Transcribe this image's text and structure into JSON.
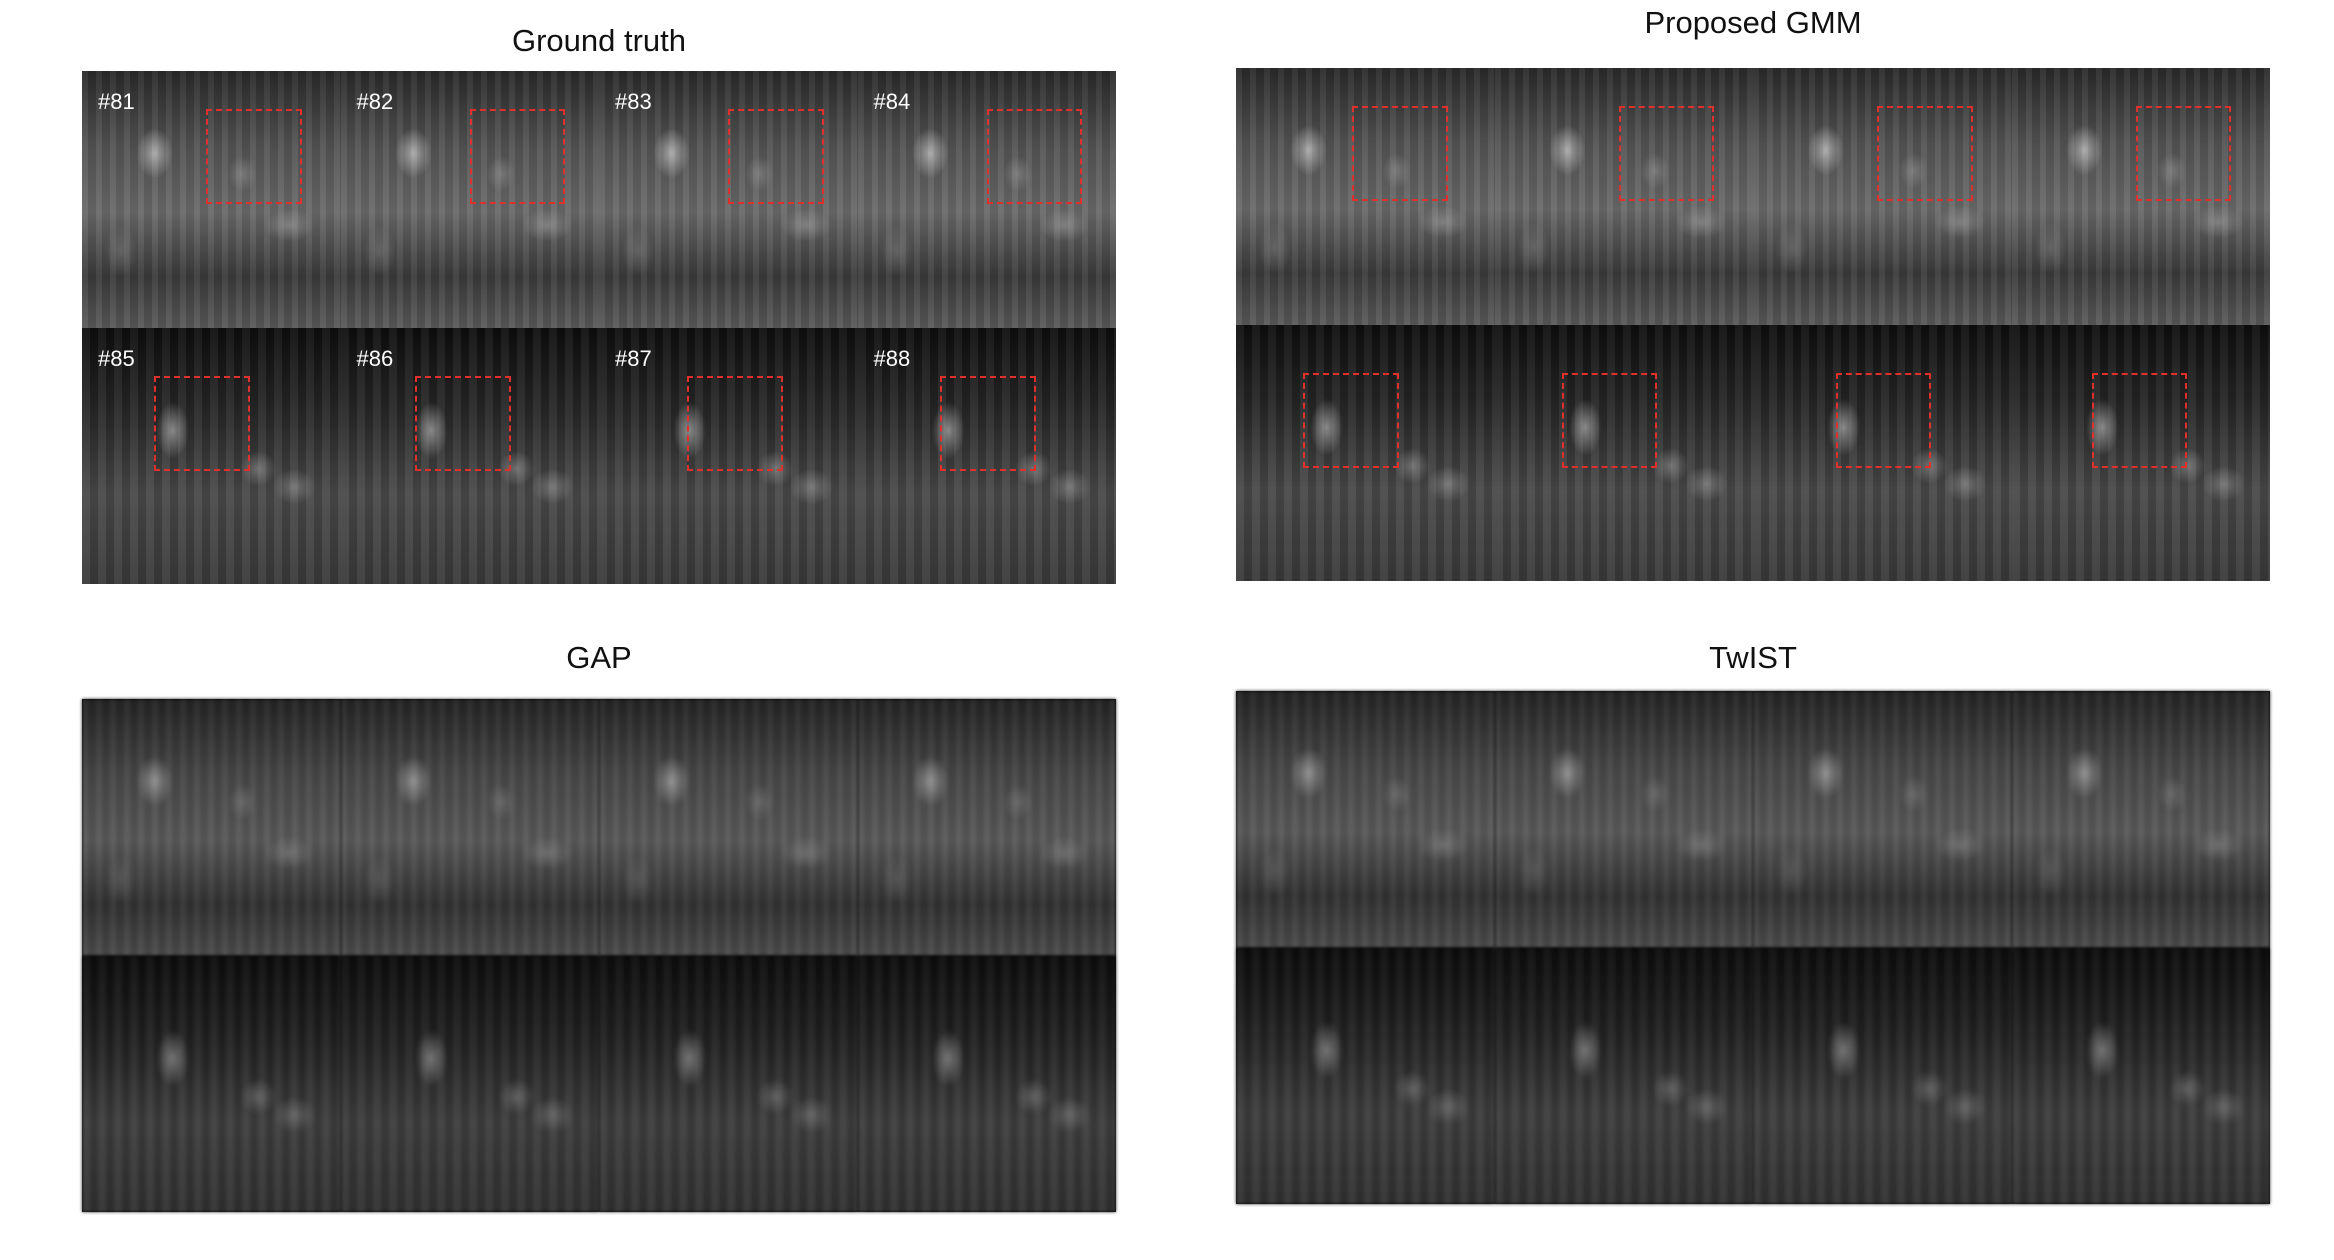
{
  "panels": {
    "ground_truth": {
      "title": "Ground truth",
      "frame_labels": [
        "#81",
        "#82",
        "#83",
        "#84",
        "#85",
        "#86",
        "#87",
        "#88"
      ]
    },
    "gmm": {
      "title": "Proposed GMM"
    },
    "gap": {
      "title": "GAP"
    },
    "twist": {
      "title": "TwIST"
    }
  },
  "colors": {
    "roi_box": "#e0302c",
    "background": "#ffffff"
  }
}
